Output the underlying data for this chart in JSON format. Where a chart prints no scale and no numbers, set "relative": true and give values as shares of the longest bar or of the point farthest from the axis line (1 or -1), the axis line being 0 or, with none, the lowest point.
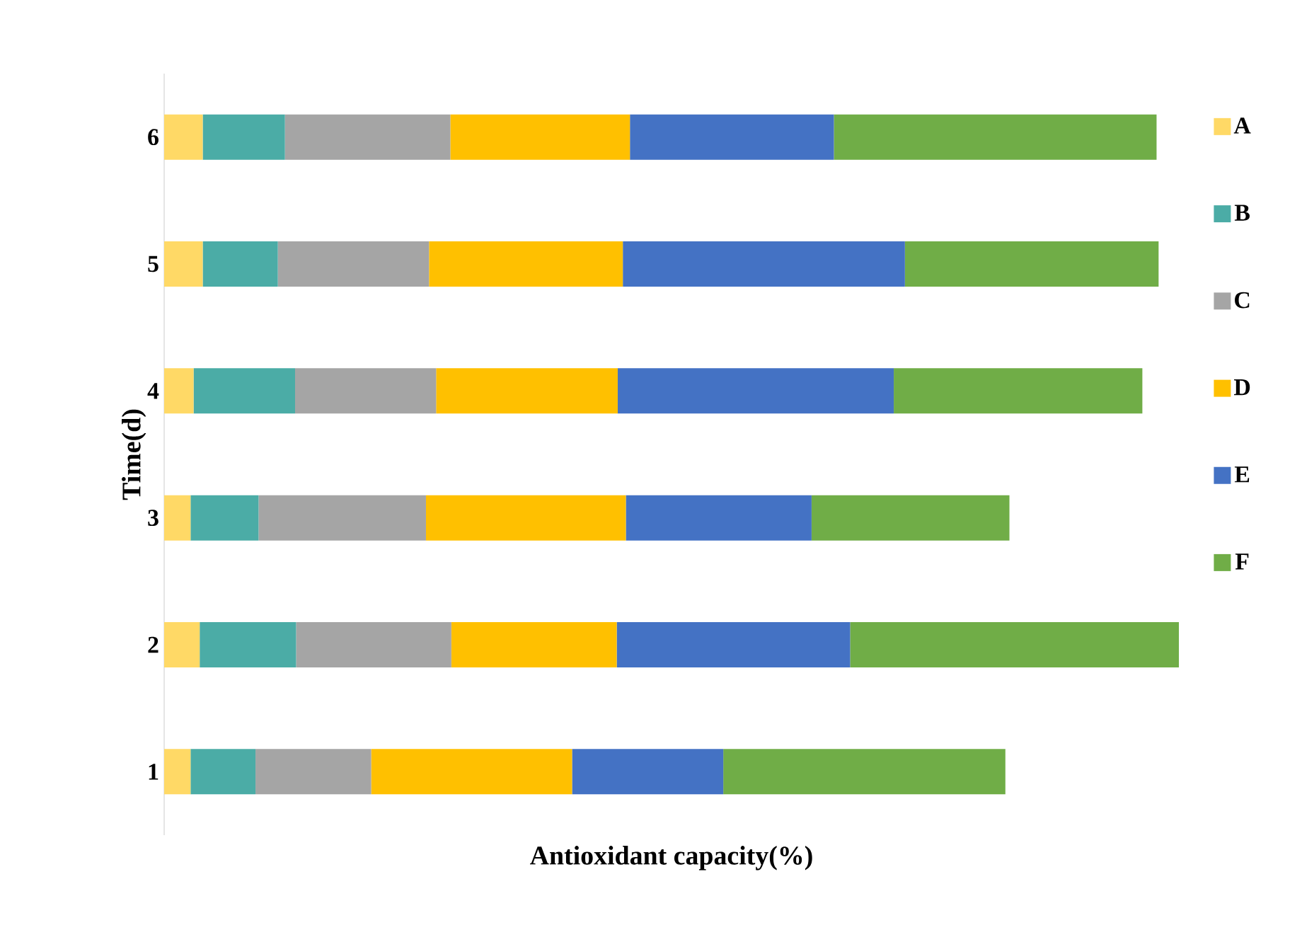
{
  "chart_data": {
    "type": "bar",
    "orientation": "horizontal",
    "stacked": true,
    "relative": true,
    "xlabel": "Antioxidant capacity(%)",
    "ylabel": "Time(d)",
    "categories": [
      "6",
      "5",
      "4",
      "3",
      "2",
      "1"
    ],
    "legend": "right",
    "series": [
      {
        "name": "A",
        "color": "#ffd966",
        "values": [
          0.038,
          0.038,
          0.029,
          0.026,
          0.035,
          0.026
        ]
      },
      {
        "name": "B",
        "color": "#4bacA6",
        "values": [
          0.081,
          0.074,
          0.1,
          0.067,
          0.095,
          0.064
        ]
      },
      {
        "name": "C",
        "color": "#a5a5a5",
        "values": [
          0.163,
          0.149,
          0.139,
          0.165,
          0.153,
          0.114
        ]
      },
      {
        "name": "D",
        "color": "#ffc000",
        "values": [
          0.177,
          0.191,
          0.179,
          0.197,
          0.163,
          0.198
        ]
      },
      {
        "name": "E",
        "color": "#4472c4",
        "values": [
          0.201,
          0.278,
          0.272,
          0.183,
          0.23,
          0.149
        ]
      },
      {
        "name": "F",
        "color": "#70ad47",
        "values": [
          0.318,
          0.25,
          0.245,
          0.195,
          0.324,
          0.278
        ]
      }
    ]
  }
}
